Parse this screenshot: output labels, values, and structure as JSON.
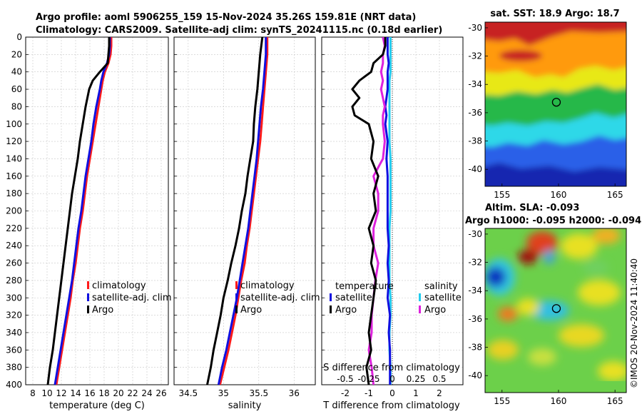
{
  "header": {
    "line1": "Argo profile: aoml 5906255_159 15-Nov-2024 35.26S 159.81E (NRT data)",
    "line2": "Climatology: CARS2009. Satellite-adj clim: synTS_20241115.nc (0.18d earlier)"
  },
  "copyright": "©IMOS 20-Nov-2024 11:40:40",
  "colors": {
    "climatology": "#ff1a1a",
    "satellite": "#1010e0",
    "argo": "#000000",
    "sat_salinity": "#22ccee",
    "argo_salinity": "#dd22dd"
  },
  "depth_ticks": [
    "0",
    "20",
    "40",
    "60",
    "80",
    "100",
    "120",
    "140",
    "160",
    "180",
    "200",
    "220",
    "240",
    "260",
    "280",
    "300",
    "320",
    "340",
    "360",
    "380",
    "400"
  ],
  "chart_data": [
    {
      "type": "line",
      "id": "temperature",
      "xlabel": "temperature (deg C)",
      "xlim": [
        7,
        27
      ],
      "ylim": [
        0,
        400
      ],
      "xticks": [
        "8",
        "10",
        "12",
        "14",
        "16",
        "18",
        "20",
        "22",
        "24",
        "26"
      ],
      "legend": [
        "climatology",
        "satellite-adj. clim",
        "Argo"
      ],
      "depth": [
        0,
        10,
        20,
        30,
        40,
        50,
        60,
        80,
        100,
        120,
        140,
        160,
        180,
        200,
        220,
        240,
        260,
        280,
        300,
        320,
        340,
        360,
        380,
        400
      ],
      "series": [
        {
          "name": "climatology",
          "values": [
            19.0,
            19.0,
            18.9,
            18.6,
            18.1,
            17.8,
            17.6,
            17.2,
            16.8,
            16.4,
            16.0,
            15.6,
            15.3,
            15.0,
            14.6,
            14.3,
            14.0,
            13.6,
            13.3,
            12.9,
            12.5,
            12.1,
            11.7,
            11.3
          ]
        },
        {
          "name": "satellite-adj. clim",
          "values": [
            18.8,
            18.8,
            18.7,
            18.4,
            17.9,
            17.6,
            17.4,
            16.9,
            16.5,
            16.2,
            15.8,
            15.4,
            15.1,
            14.8,
            14.4,
            14.1,
            13.8,
            13.5,
            13.1,
            12.7,
            12.3,
            11.9,
            11.5,
            11.1
          ]
        },
        {
          "name": "Argo",
          "values": [
            18.7,
            18.7,
            18.6,
            18.5,
            17.4,
            16.4,
            15.9,
            15.4,
            15.0,
            14.6,
            14.3,
            13.9,
            13.5,
            13.2,
            12.9,
            12.6,
            12.3,
            12.0,
            11.7,
            11.4,
            11.1,
            10.8,
            10.4,
            10.1
          ]
        }
      ]
    },
    {
      "type": "line",
      "id": "salinity",
      "xlabel": "salinity",
      "xlim": [
        34.3,
        36.3
      ],
      "ylim": [
        0,
        400
      ],
      "xticks": [
        "34.5",
        "35",
        "35.5",
        "36"
      ],
      "legend": [
        "climatology",
        "satellite-adj. clim",
        "Argo"
      ],
      "depth": [
        0,
        20,
        40,
        60,
        80,
        100,
        120,
        140,
        160,
        180,
        200,
        220,
        240,
        260,
        280,
        300,
        320,
        340,
        360,
        380,
        400
      ],
      "series": [
        {
          "name": "climatology",
          "values": [
            35.62,
            35.62,
            35.6,
            35.58,
            35.56,
            35.54,
            35.52,
            35.49,
            35.46,
            35.43,
            35.4,
            35.37,
            35.33,
            35.3,
            35.25,
            35.21,
            35.17,
            35.12,
            35.07,
            35.01,
            34.95
          ]
        },
        {
          "name": "satellite-adj. clim",
          "values": [
            35.6,
            35.6,
            35.58,
            35.56,
            35.53,
            35.51,
            35.49,
            35.47,
            35.44,
            35.41,
            35.38,
            35.35,
            35.31,
            35.27,
            35.23,
            35.19,
            35.14,
            35.09,
            35.04,
            34.98,
            34.93
          ]
        },
        {
          "name": "Argo",
          "values": [
            35.55,
            35.52,
            35.5,
            35.48,
            35.45,
            35.43,
            35.42,
            35.38,
            35.34,
            35.31,
            35.26,
            35.22,
            35.17,
            35.11,
            35.06,
            35.0,
            34.96,
            34.91,
            34.86,
            34.82,
            34.77
          ]
        }
      ]
    },
    {
      "type": "line",
      "id": "difference",
      "xlabel": "T difference from climatology",
      "xlabel_top": "S difference from climatology",
      "xlim": [
        -3,
        3
      ],
      "ylim": [
        0,
        400
      ],
      "xticks": [
        "-2",
        "-1",
        "0",
        "1",
        "2"
      ],
      "s_xticks": [
        "-0.5",
        "-0.25",
        "0",
        "0.25",
        "0.5"
      ],
      "legend_title_t": "temperature",
      "legend_title_s": "salinity",
      "legend_t": [
        "satellite",
        "Argo"
      ],
      "legend_s": [
        "satellite",
        "Argo"
      ],
      "depth": [
        0,
        10,
        20,
        30,
        40,
        50,
        60,
        70,
        80,
        90,
        100,
        120,
        140,
        160,
        180,
        200,
        220,
        240,
        260,
        280,
        300,
        320,
        340,
        360,
        380,
        400
      ],
      "series": [
        {
          "name": "T satellite",
          "values": [
            -0.2,
            -0.2,
            -0.2,
            -0.15,
            -0.2,
            -0.2,
            -0.2,
            -0.25,
            -0.3,
            -0.25,
            -0.3,
            -0.2,
            -0.25,
            -0.2,
            -0.2,
            -0.2,
            -0.2,
            -0.15,
            -0.2,
            -0.15,
            -0.2,
            -0.1,
            -0.15,
            -0.1,
            -0.1,
            -0.1
          ]
        },
        {
          "name": "T Argo",
          "values": [
            -0.3,
            -0.3,
            -0.4,
            -0.8,
            -0.9,
            -1.4,
            -1.7,
            -1.4,
            -1.7,
            -1.6,
            -1.0,
            -0.8,
            -0.9,
            -0.6,
            -0.8,
            -0.7,
            -1.0,
            -0.8,
            -0.9,
            -0.7,
            -0.8,
            -0.9,
            -1.0,
            -0.9,
            -1.1,
            -1.0
          ]
        },
        {
          "name": "S satellite",
          "values": [
            -0.02,
            -0.02,
            -0.02,
            -0.02,
            -0.02,
            -0.03,
            -0.03,
            -0.03,
            -0.03,
            -0.03,
            -0.03,
            -0.03,
            -0.02,
            -0.02,
            -0.02,
            -0.02,
            -0.03,
            -0.03,
            -0.03,
            -0.03,
            -0.02,
            -0.02,
            -0.03,
            -0.03,
            -0.02,
            -0.02
          ]
        },
        {
          "name": "S Argo",
          "values": [
            -0.1,
            -0.08,
            -0.1,
            -0.1,
            -0.12,
            -0.1,
            -0.12,
            -0.1,
            -0.08,
            -0.1,
            -0.1,
            -0.08,
            -0.1,
            -0.2,
            -0.15,
            -0.15,
            -0.2,
            -0.2,
            -0.15,
            -0.18,
            -0.2,
            -0.22,
            -0.22,
            -0.25,
            -0.22,
            -0.2
          ]
        }
      ]
    },
    {
      "type": "heatmap",
      "id": "sst_map",
      "title": "sat. SST: 18.9 Argo: 18.7",
      "xticks": [
        "155",
        "160",
        "165"
      ],
      "yticks": [
        "-30",
        "-32",
        "-34",
        "-36",
        "-38",
        "-40"
      ],
      "xlim": [
        153.5,
        166
      ],
      "ylim": [
        -41.2,
        -29.6
      ],
      "argo_lon": 159.81,
      "argo_lat": -35.26
    },
    {
      "type": "heatmap",
      "id": "sla_map",
      "title": "Altim. SLA: -0.093",
      "subtitle": "Argo h1000: -0.095 h2000: -0.094",
      "xticks": [
        "155",
        "160",
        "165"
      ],
      "yticks": [
        "-30",
        "-32",
        "-34",
        "-36",
        "-38",
        "-40"
      ],
      "xlim": [
        153.5,
        166
      ],
      "ylim": [
        -41.2,
        -29.6
      ],
      "argo_lon": 159.81,
      "argo_lat": -35.26
    }
  ]
}
